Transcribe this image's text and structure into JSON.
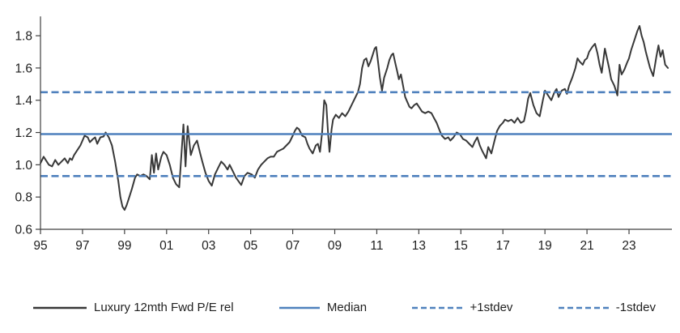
{
  "chart_data": {
    "type": "line",
    "title": "",
    "x_axis": {
      "range": [
        1995,
        2025.04
      ],
      "tick_years": [
        1995,
        1997,
        1999,
        2001,
        2003,
        2005,
        2007,
        2009,
        2011,
        2013,
        2015,
        2017,
        2019,
        2021,
        2023
      ],
      "tick_labels": [
        "95",
        "97",
        "99",
        "01",
        "03",
        "05",
        "07",
        "09",
        "11",
        "13",
        "15",
        "17",
        "19",
        "21",
        "23"
      ]
    },
    "y_axis": {
      "range": [
        0.6,
        1.92
      ],
      "tick_values": [
        0.6,
        0.8,
        1.0,
        1.2,
        1.4,
        1.6,
        1.8
      ],
      "tick_labels": [
        "0.6",
        "0.8",
        "1.0",
        "1.2",
        "1.4",
        "1.6",
        "1.8"
      ]
    },
    "grid": false,
    "legend_position": "bottom",
    "colors": {
      "series": "#383838",
      "stat_lines": "#4f81bd",
      "axis": "#404040",
      "text": "#1f1f1f"
    },
    "series": [
      {
        "name": "Luxury 12mth Fwd P/E rel",
        "kind": "line",
        "color": "#383838",
        "style": "solid",
        "points": [
          [
            1995.0,
            1.01
          ],
          [
            1995.15,
            1.05
          ],
          [
            1995.25,
            1.03
          ],
          [
            1995.4,
            1.0
          ],
          [
            1995.55,
            0.99
          ],
          [
            1995.7,
            1.03
          ],
          [
            1995.85,
            1.0
          ],
          [
            1996.0,
            1.02
          ],
          [
            1996.15,
            1.04
          ],
          [
            1996.3,
            1.01
          ],
          [
            1996.4,
            1.04
          ],
          [
            1996.5,
            1.03
          ],
          [
            1996.6,
            1.06
          ],
          [
            1996.75,
            1.09
          ],
          [
            1996.9,
            1.12
          ],
          [
            1997.0,
            1.15
          ],
          [
            1997.1,
            1.18
          ],
          [
            1997.25,
            1.17
          ],
          [
            1997.35,
            1.14
          ],
          [
            1997.5,
            1.16
          ],
          [
            1997.6,
            1.17
          ],
          [
            1997.7,
            1.13
          ],
          [
            1997.85,
            1.17
          ],
          [
            1998.0,
            1.175
          ],
          [
            1998.1,
            1.2
          ],
          [
            1998.25,
            1.17
          ],
          [
            1998.4,
            1.12
          ],
          [
            1998.55,
            1.02
          ],
          [
            1998.7,
            0.9
          ],
          [
            1998.8,
            0.8
          ],
          [
            1998.9,
            0.74
          ],
          [
            1999.0,
            0.72
          ],
          [
            1999.1,
            0.75
          ],
          [
            1999.2,
            0.79
          ],
          [
            1999.35,
            0.85
          ],
          [
            1999.5,
            0.92
          ],
          [
            1999.6,
            0.94
          ],
          [
            1999.75,
            0.93
          ],
          [
            1999.9,
            0.94
          ],
          [
            2000.05,
            0.93
          ],
          [
            2000.2,
            0.91
          ],
          [
            2000.3,
            1.06
          ],
          [
            2000.4,
            0.95
          ],
          [
            2000.5,
            1.07
          ],
          [
            2000.6,
            0.97
          ],
          [
            2000.75,
            1.05
          ],
          [
            2000.85,
            1.08
          ],
          [
            2001.0,
            1.06
          ],
          [
            2001.15,
            1.0
          ],
          [
            2001.3,
            0.92
          ],
          [
            2001.45,
            0.88
          ],
          [
            2001.6,
            0.86
          ],
          [
            2001.8,
            1.25
          ],
          [
            2001.9,
            0.99
          ],
          [
            2002.0,
            1.24
          ],
          [
            2002.15,
            1.06
          ],
          [
            2002.3,
            1.12
          ],
          [
            2002.45,
            1.15
          ],
          [
            2002.6,
            1.07
          ],
          [
            2002.7,
            1.02
          ],
          [
            2002.85,
            0.95
          ],
          [
            2003.0,
            0.9
          ],
          [
            2003.15,
            0.87
          ],
          [
            2003.3,
            0.94
          ],
          [
            2003.45,
            0.98
          ],
          [
            2003.6,
            1.02
          ],
          [
            2003.75,
            1.0
          ],
          [
            2003.9,
            0.97
          ],
          [
            2004.0,
            1.0
          ],
          [
            2004.15,
            0.96
          ],
          [
            2004.3,
            0.92
          ],
          [
            2004.55,
            0.875
          ],
          [
            2004.7,
            0.93
          ],
          [
            2004.85,
            0.95
          ],
          [
            2005.05,
            0.94
          ],
          [
            2005.2,
            0.92
          ],
          [
            2005.35,
            0.97
          ],
          [
            2005.5,
            1.0
          ],
          [
            2005.65,
            1.02
          ],
          [
            2005.8,
            1.04
          ],
          [
            2005.95,
            1.05
          ],
          [
            2006.1,
            1.05
          ],
          [
            2006.25,
            1.08
          ],
          [
            2006.4,
            1.09
          ],
          [
            2006.55,
            1.1
          ],
          [
            2006.7,
            1.12
          ],
          [
            2006.85,
            1.14
          ],
          [
            2007.0,
            1.18
          ],
          [
            2007.1,
            1.21
          ],
          [
            2007.2,
            1.23
          ],
          [
            2007.3,
            1.22
          ],
          [
            2007.45,
            1.18
          ],
          [
            2007.6,
            1.17
          ],
          [
            2007.7,
            1.13
          ],
          [
            2007.8,
            1.1
          ],
          [
            2007.95,
            1.07
          ],
          [
            2008.1,
            1.12
          ],
          [
            2008.2,
            1.13
          ],
          [
            2008.3,
            1.08
          ],
          [
            2008.4,
            1.2
          ],
          [
            2008.5,
            1.4
          ],
          [
            2008.6,
            1.37
          ],
          [
            2008.68,
            1.2
          ],
          [
            2008.75,
            1.08
          ],
          [
            2008.85,
            1.22
          ],
          [
            2008.92,
            1.28
          ],
          [
            2009.05,
            1.31
          ],
          [
            2009.2,
            1.29
          ],
          [
            2009.35,
            1.32
          ],
          [
            2009.5,
            1.3
          ],
          [
            2009.65,
            1.33
          ],
          [
            2009.8,
            1.37
          ],
          [
            2009.95,
            1.41
          ],
          [
            2010.1,
            1.45
          ],
          [
            2010.2,
            1.5
          ],
          [
            2010.3,
            1.6
          ],
          [
            2010.4,
            1.65
          ],
          [
            2010.5,
            1.66
          ],
          [
            2010.6,
            1.61
          ],
          [
            2010.7,
            1.64
          ],
          [
            2010.8,
            1.68
          ],
          [
            2010.9,
            1.72
          ],
          [
            2010.97,
            1.73
          ],
          [
            2011.05,
            1.65
          ],
          [
            2011.15,
            1.54
          ],
          [
            2011.25,
            1.46
          ],
          [
            2011.35,
            1.54
          ],
          [
            2011.5,
            1.6
          ],
          [
            2011.6,
            1.65
          ],
          [
            2011.7,
            1.68
          ],
          [
            2011.78,
            1.69
          ],
          [
            2011.88,
            1.63
          ],
          [
            2011.97,
            1.58
          ],
          [
            2012.05,
            1.53
          ],
          [
            2012.15,
            1.56
          ],
          [
            2012.25,
            1.49
          ],
          [
            2012.35,
            1.42
          ],
          [
            2012.45,
            1.39
          ],
          [
            2012.55,
            1.36
          ],
          [
            2012.65,
            1.35
          ],
          [
            2012.78,
            1.37
          ],
          [
            2012.9,
            1.38
          ],
          [
            2013.0,
            1.36
          ],
          [
            2013.15,
            1.33
          ],
          [
            2013.3,
            1.32
          ],
          [
            2013.45,
            1.33
          ],
          [
            2013.6,
            1.32
          ],
          [
            2013.72,
            1.29
          ],
          [
            2013.85,
            1.26
          ],
          [
            2014.0,
            1.21
          ],
          [
            2014.1,
            1.18
          ],
          [
            2014.25,
            1.16
          ],
          [
            2014.4,
            1.17
          ],
          [
            2014.5,
            1.15
          ],
          [
            2014.65,
            1.17
          ],
          [
            2014.8,
            1.2
          ],
          [
            2014.95,
            1.19
          ],
          [
            2015.1,
            1.16
          ],
          [
            2015.25,
            1.15
          ],
          [
            2015.4,
            1.13
          ],
          [
            2015.55,
            1.11
          ],
          [
            2015.65,
            1.14
          ],
          [
            2015.78,
            1.17
          ],
          [
            2015.9,
            1.12
          ],
          [
            2016.0,
            1.09
          ],
          [
            2016.12,
            1.06
          ],
          [
            2016.2,
            1.04
          ],
          [
            2016.3,
            1.11
          ],
          [
            2016.45,
            1.07
          ],
          [
            2016.6,
            1.15
          ],
          [
            2016.72,
            1.21
          ],
          [
            2016.85,
            1.24
          ],
          [
            2017.0,
            1.26
          ],
          [
            2017.1,
            1.28
          ],
          [
            2017.25,
            1.27
          ],
          [
            2017.4,
            1.28
          ],
          [
            2017.55,
            1.26
          ],
          [
            2017.7,
            1.29
          ],
          [
            2017.85,
            1.26
          ],
          [
            2018.0,
            1.27
          ],
          [
            2018.1,
            1.33
          ],
          [
            2018.2,
            1.41
          ],
          [
            2018.3,
            1.445
          ],
          [
            2018.45,
            1.37
          ],
          [
            2018.6,
            1.32
          ],
          [
            2018.75,
            1.3
          ],
          [
            2018.9,
            1.4
          ],
          [
            2019.0,
            1.46
          ],
          [
            2019.15,
            1.43
          ],
          [
            2019.3,
            1.4
          ],
          [
            2019.45,
            1.45
          ],
          [
            2019.55,
            1.47
          ],
          [
            2019.65,
            1.42
          ],
          [
            2019.8,
            1.46
          ],
          [
            2019.95,
            1.47
          ],
          [
            2020.05,
            1.44
          ],
          [
            2020.15,
            1.49
          ],
          [
            2020.3,
            1.54
          ],
          [
            2020.45,
            1.6
          ],
          [
            2020.55,
            1.66
          ],
          [
            2020.65,
            1.64
          ],
          [
            2020.8,
            1.62
          ],
          [
            2020.9,
            1.65
          ],
          [
            2021.0,
            1.66
          ],
          [
            2021.1,
            1.7
          ],
          [
            2021.25,
            1.73
          ],
          [
            2021.38,
            1.75
          ],
          [
            2021.5,
            1.69
          ],
          [
            2021.6,
            1.62
          ],
          [
            2021.7,
            1.57
          ],
          [
            2021.85,
            1.72
          ],
          [
            2021.95,
            1.66
          ],
          [
            2022.05,
            1.6
          ],
          [
            2022.15,
            1.53
          ],
          [
            2022.3,
            1.49
          ],
          [
            2022.45,
            1.43
          ],
          [
            2022.55,
            1.62
          ],
          [
            2022.65,
            1.56
          ],
          [
            2022.78,
            1.59
          ],
          [
            2022.9,
            1.63
          ],
          [
            2023.0,
            1.66
          ],
          [
            2023.1,
            1.71
          ],
          [
            2023.25,
            1.77
          ],
          [
            2023.4,
            1.83
          ],
          [
            2023.5,
            1.86
          ],
          [
            2023.6,
            1.8
          ],
          [
            2023.7,
            1.76
          ],
          [
            2023.8,
            1.7
          ],
          [
            2023.9,
            1.65
          ],
          [
            2024.0,
            1.6
          ],
          [
            2024.15,
            1.55
          ],
          [
            2024.3,
            1.67
          ],
          [
            2024.4,
            1.74
          ],
          [
            2024.5,
            1.67
          ],
          [
            2024.6,
            1.71
          ],
          [
            2024.72,
            1.62
          ],
          [
            2024.85,
            1.6
          ]
        ]
      },
      {
        "name": "Median",
        "kind": "hline",
        "color": "#4f81bd",
        "style": "solid",
        "value": 1.19
      },
      {
        "name": "+1stdev",
        "kind": "hline",
        "color": "#4f81bd",
        "style": "dashed",
        "value": 1.45
      },
      {
        "name": "-1stdev",
        "kind": "hline",
        "color": "#4f81bd",
        "style": "dashed",
        "value": 0.93
      }
    ]
  }
}
